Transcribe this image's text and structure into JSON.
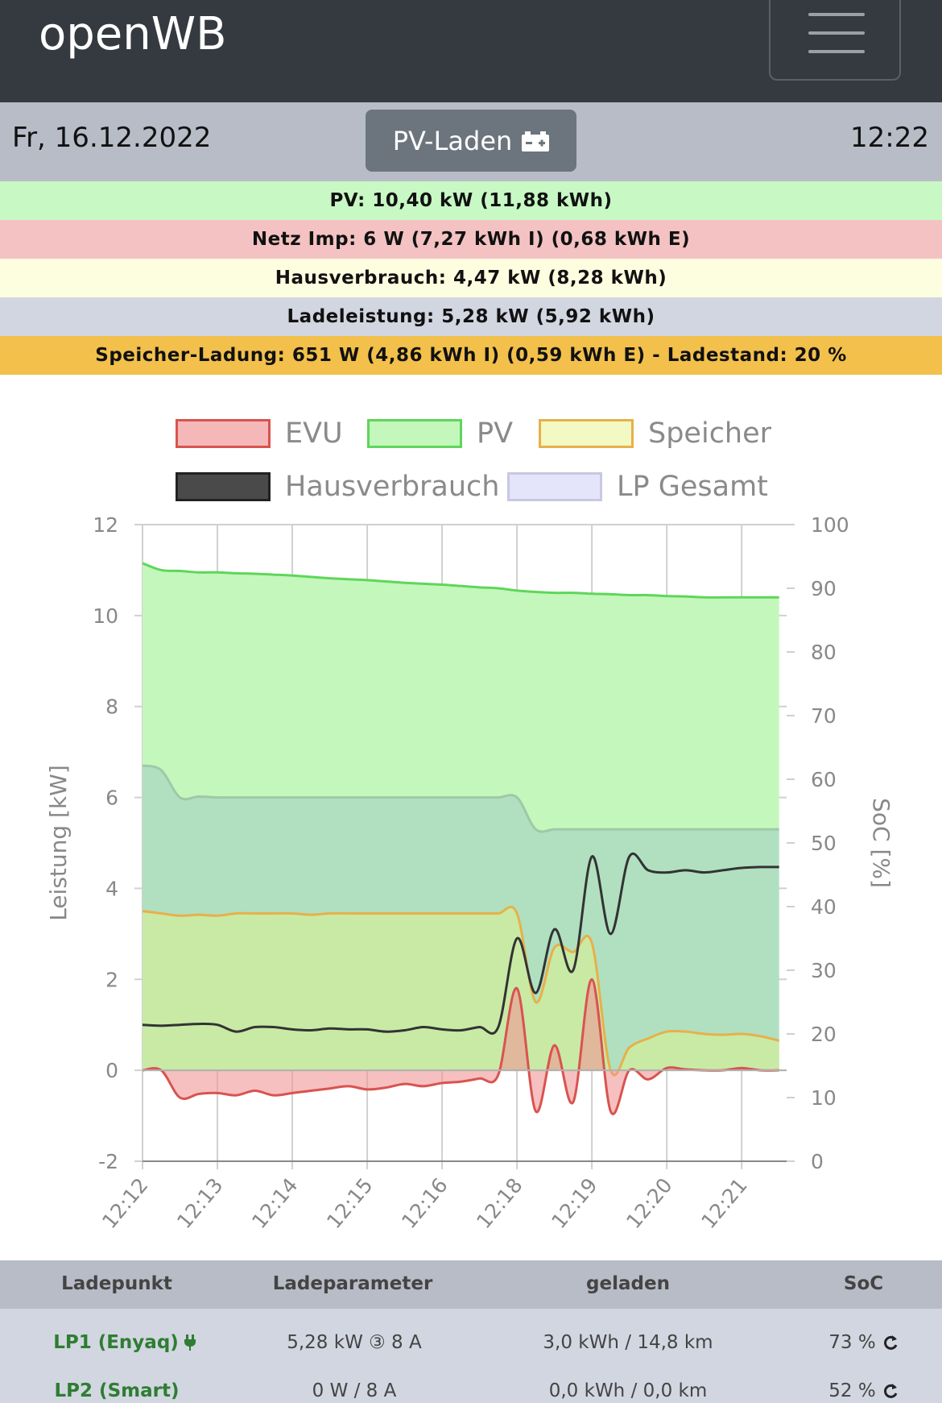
{
  "app": {
    "brand": "openWB"
  },
  "infobar": {
    "date": "Fr, 16.12.2022",
    "mode": "PV-Laden",
    "time": "12:22"
  },
  "strips": [
    {
      "text": "PV: 10,40 kW (11,88 kWh)",
      "bg": "#c8f8c4"
    },
    {
      "text": "Netz Imp: 6 W (7,27 kWh I) (0,68 kWh E)",
      "bg": "#f4c2c2"
    },
    {
      "text": "Hausverbrauch: 4,47 kW (8,28 kWh)",
      "bg": "#fdfde0"
    },
    {
      "text": "Ladeleistung: 5,28 kW (5,92 kWh)",
      "bg": "#d2d6e1"
    },
    {
      "text": "Speicher-Ladung: 651 W (4,86 kWh I) (0,59 kWh E) - Ladestand: 20 %",
      "bg": "#f2c04b"
    }
  ],
  "legend": [
    {
      "label": "EVU",
      "fill": "#f4b8b8",
      "stroke": "#d9534f"
    },
    {
      "label": "PV",
      "fill": "#c4f7bc",
      "stroke": "#5fd65a"
    },
    {
      "label": "Speicher",
      "fill": "#f2f9c2",
      "stroke": "#e8b04a"
    },
    {
      "label": "Hausverbrauch",
      "fill": "#4a4a4a",
      "stroke": "#222222"
    },
    {
      "label": "LP Gesamt",
      "fill": "#e4e4fa",
      "stroke": "#c8c8e0"
    }
  ],
  "chart_data": {
    "type": "area",
    "ylabel": "Leistung [kW]",
    "y2label": "SoC [%]",
    "ylim": [
      -2,
      12
    ],
    "y2lim": [
      0,
      100
    ],
    "yticks": [
      -2,
      0,
      2,
      4,
      6,
      8,
      10,
      12
    ],
    "y2ticks": [
      0,
      10,
      20,
      30,
      40,
      50,
      60,
      70,
      80,
      90,
      100
    ],
    "xlabels": [
      "12:12",
      "12:13",
      "12:14",
      "12:15",
      "12:16",
      "12:18",
      "12:19",
      "12:20",
      "12:21"
    ],
    "grid": true,
    "legend_position": "top",
    "x_min": [
      0,
      0.25,
      0.5,
      0.75,
      1,
      1.25,
      1.5,
      1.75,
      2,
      2.25,
      2.5,
      2.75,
      3,
      3.25,
      3.5,
      3.75,
      4,
      4.25,
      4.5,
      4.75,
      5,
      5.25,
      5.5,
      5.75,
      6,
      6.25,
      6.5,
      6.75,
      7,
      7.25,
      7.5,
      7.75,
      8,
      8.25,
      8.5
    ],
    "series": [
      {
        "name": "PV",
        "color": "#5fd65a",
        "fill": "#c4f7bc",
        "values": [
          11.15,
          11.0,
          10.98,
          10.95,
          10.95,
          10.93,
          10.92,
          10.9,
          10.88,
          10.85,
          10.82,
          10.8,
          10.78,
          10.75,
          10.72,
          10.7,
          10.68,
          10.65,
          10.62,
          10.6,
          10.55,
          10.52,
          10.5,
          10.5,
          10.48,
          10.47,
          10.45,
          10.45,
          10.43,
          10.42,
          10.4,
          10.4,
          10.4,
          10.4,
          10.4
        ]
      },
      {
        "name": "LP Gesamt",
        "color": "#9fc9a6",
        "fill": "rgba(160,205,195,0.55)",
        "values": [
          6.7,
          6.6,
          6.0,
          6.02,
          6.0,
          6.0,
          6.0,
          6.0,
          6.0,
          6.0,
          6.0,
          6.0,
          6.0,
          6.0,
          6.0,
          6.0,
          6.0,
          6.0,
          6.0,
          6.0,
          6.0,
          5.3,
          5.3,
          5.3,
          5.3,
          5.3,
          5.3,
          5.3,
          5.3,
          5.3,
          5.3,
          5.3,
          5.3,
          5.3,
          5.3
        ]
      },
      {
        "name": "Speicher",
        "color": "#e8b04a",
        "fill": "rgba(215,240,150,0.65)",
        "values": [
          3.5,
          3.45,
          3.4,
          3.42,
          3.4,
          3.45,
          3.45,
          3.45,
          3.45,
          3.42,
          3.45,
          3.45,
          3.45,
          3.45,
          3.45,
          3.45,
          3.45,
          3.45,
          3.45,
          3.45,
          3.45,
          1.5,
          2.7,
          2.6,
          2.8,
          0.0,
          0.5,
          0.7,
          0.85,
          0.85,
          0.8,
          0.78,
          0.8,
          0.75,
          0.65
        ]
      },
      {
        "name": "Hausverbrauch",
        "color": "#333333",
        "fill": "none",
        "values": [
          1.0,
          0.98,
          1.0,
          1.02,
          1.0,
          0.85,
          0.95,
          0.95,
          0.9,
          0.88,
          0.92,
          0.9,
          0.9,
          0.85,
          0.88,
          0.95,
          0.9,
          0.88,
          0.95,
          0.95,
          2.9,
          1.7,
          3.1,
          2.2,
          4.7,
          3.0,
          4.7,
          4.4,
          4.35,
          4.4,
          4.35,
          4.4,
          4.45,
          4.47,
          4.47
        ]
      },
      {
        "name": "EVU",
        "color": "#d9534f",
        "fill": "rgba(240,150,150,0.6)",
        "values": [
          0.0,
          0.0,
          -0.6,
          -0.52,
          -0.5,
          -0.55,
          -0.45,
          -0.55,
          -0.5,
          -0.45,
          -0.4,
          -0.35,
          -0.42,
          -0.38,
          -0.3,
          -0.35,
          -0.28,
          -0.25,
          -0.18,
          -0.1,
          1.8,
          -0.9,
          0.55,
          -0.7,
          2.0,
          -0.9,
          0.0,
          -0.2,
          0.05,
          0.02,
          0.0,
          0.0,
          0.05,
          0.0,
          0.0
        ]
      }
    ]
  },
  "table": {
    "headers": [
      "Ladepunkt",
      "Ladeparameter",
      "geladen",
      "SoC"
    ],
    "rows": [
      {
        "lp": "LP1 (Enyaq)",
        "params": "5,28 kW ③ 8 A",
        "charged": "3,0 kWh / 14,8 km",
        "soc": "73 %"
      },
      {
        "lp": "LP2 (Smart)",
        "params": "0 W / 8 A",
        "charged": "0,0 kWh / 0,0 km",
        "soc": "52 %"
      }
    ]
  }
}
